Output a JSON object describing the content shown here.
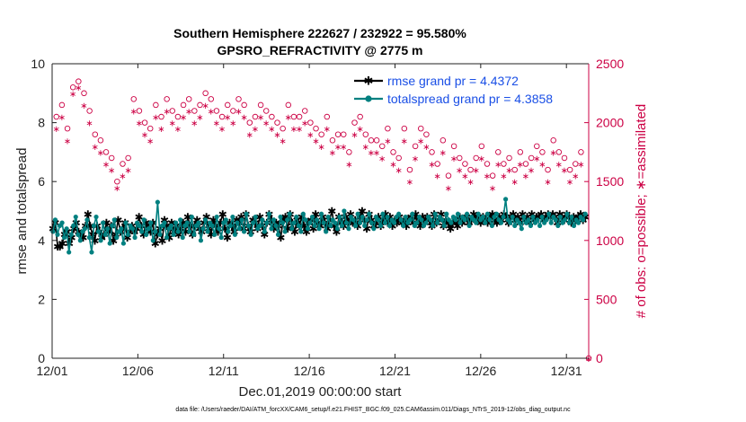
{
  "chart_data": {
    "type": "line",
    "title": "Southern Hemisphere 222627 / 232922 = 95.580%",
    "subtitle": "GPSRO_REFRACTIVITY @ 2775 m",
    "xlabel": "Dec.01,2019 00:00:00 start",
    "ylabel": "rmse and totalspread",
    "y2label": "# of obs: o=possible; ∗=assimilated",
    "footer": "data file: /Users/raeder/DAI/ATM_forcXX/CAM6_setup/f.e21.FHIST_BGC.f09_025.CAM6assim.011/Diags_NTrS_2019-12/obs_diag_output.nc",
    "xlim": [
      0,
      31.3
    ],
    "ylim": [
      0,
      10
    ],
    "y2lim": [
      0,
      2500
    ],
    "xticks": [
      0,
      5,
      10,
      15,
      20,
      25,
      30
    ],
    "xtick_labels": [
      "12/01",
      "12/06",
      "12/11",
      "12/16",
      "12/21",
      "12/26",
      "12/31"
    ],
    "yticks": [
      0,
      2,
      4,
      6,
      8,
      10
    ],
    "ytick_labels": [
      "0",
      "2",
      "4",
      "6",
      "8",
      "10"
    ],
    "y2ticks": [
      0,
      500,
      1000,
      1500,
      2000,
      2500
    ],
    "y2tick_labels": [
      "0",
      "500",
      "1000",
      "1500",
      "2000",
      "2500"
    ],
    "legend_position": "top-right",
    "colors": {
      "rmse": "#000000",
      "spread": "#008080",
      "obs": "#cc0044",
      "axis_right": "#cc0044"
    },
    "series": [
      {
        "name": "rmse grand pr = 4.4372",
        "values": [
          4.4,
          4.6,
          3.8,
          3.8,
          3.9,
          4.2,
          4.3,
          3.9,
          4.1,
          4.4,
          4.6,
          4.3,
          4.2,
          4.1,
          4.5,
          4.9,
          4.5,
          4.2,
          4.0,
          4.5,
          4.3,
          4.1,
          4.2,
          4.6,
          4.3,
          4.5,
          4.0,
          4.2,
          4.7,
          4.3,
          4.4,
          4.6,
          4.1,
          4.3,
          4.5,
          4.3,
          4.4,
          4.8,
          4.5,
          4.2,
          4.6,
          4.4,
          4.3,
          4.6,
          3.9,
          4.2,
          4.4,
          4.0,
          4.7,
          4.5,
          4.1,
          4.6,
          4.3,
          4.5,
          4.2,
          4.4,
          4.6,
          4.3,
          4.8,
          4.5,
          4.2,
          4.5,
          4.7,
          4.4,
          4.3,
          4.6,
          4.8,
          4.4,
          4.2,
          4.7,
          4.5,
          4.3,
          4.6,
          4.9,
          4.4,
          4.1,
          4.6,
          4.5,
          4.3,
          4.7,
          4.6,
          4.8,
          4.4,
          4.9,
          4.5,
          4.3,
          4.7,
          4.6,
          4.4,
          4.8,
          4.5,
          4.2,
          4.6,
          4.9,
          4.7,
          4.4,
          4.6,
          4.5,
          4.1,
          4.7,
          4.8,
          4.4,
          4.9,
          4.6,
          4.3,
          4.7,
          4.5,
          4.8,
          4.5,
          4.3,
          4.6,
          4.7,
          4.4,
          4.9,
          4.6,
          4.5,
          4.8,
          4.6,
          4.4,
          4.7,
          5.0,
          4.5,
          4.3,
          4.8,
          4.6,
          4.5,
          4.8,
          4.6,
          4.9,
          4.6,
          4.7,
          4.5,
          4.8,
          5.0,
          4.7,
          4.4,
          4.9,
          4.7,
          4.5,
          4.6,
          4.8,
          4.5,
          4.7,
          4.9,
          4.6,
          4.8,
          4.5,
          4.7,
          4.6,
          4.8,
          4.6,
          4.7,
          4.5,
          4.7,
          4.8,
          4.6,
          4.9,
          4.7,
          4.5,
          4.8,
          4.6,
          4.8,
          4.7,
          4.5,
          4.9,
          4.6,
          4.7,
          4.9,
          4.5,
          4.7,
          4.6,
          4.4,
          4.6,
          4.7,
          4.5,
          4.8,
          4.6,
          4.7,
          4.8,
          4.6,
          4.7,
          4.9,
          4.7,
          4.8,
          4.6,
          4.8,
          4.7,
          4.6,
          4.8,
          4.9,
          4.7,
          4.6,
          4.8,
          4.7,
          4.9,
          4.8,
          4.6,
          4.8,
          4.9,
          4.7,
          4.8,
          4.6,
          4.9,
          4.7,
          4.8,
          4.6,
          4.9,
          4.7,
          4.8,
          4.8,
          4.9,
          4.7,
          4.8,
          4.9,
          4.8,
          4.9,
          4.8,
          4.6,
          4.9,
          4.8,
          4.7,
          4.9,
          4.8,
          4.6,
          4.8,
          4.7,
          4.8,
          4.9,
          4.7,
          4.8
        ]
      },
      {
        "name": "totalspread grand pr = 4.3858",
        "values": [
          4.3,
          4.7,
          4.2,
          4.5,
          4.6,
          4.1,
          4.4,
          3.6,
          4.2,
          4.5,
          4.8,
          4.2,
          4.0,
          4.3,
          4.4,
          4.7,
          4.1,
          3.6,
          4.5,
          4.8,
          4.3,
          4.0,
          4.6,
          4.2,
          4.4,
          3.9,
          4.5,
          4.7,
          4.1,
          4.3,
          4.4,
          3.9,
          4.6,
          4.2,
          4.5,
          4.4,
          4.1,
          4.6,
          4.5,
          4.3,
          4.7,
          4.2,
          4.4,
          4.6,
          4.0,
          4.3,
          5.3,
          4.2,
          4.5,
          4.6,
          4.1,
          4.4,
          4.5,
          4.2,
          4.6,
          4.3,
          4.7,
          4.1,
          4.5,
          4.6,
          4.3,
          4.8,
          4.2,
          4.5,
          4.6,
          4.0,
          4.4,
          4.7,
          4.3,
          4.6,
          4.5,
          4.2,
          4.8,
          4.4,
          4.1,
          4.6,
          4.7,
          4.3,
          4.5,
          4.8,
          4.2,
          4.6,
          4.4,
          4.7,
          4.3,
          4.9,
          4.5,
          4.2,
          4.6,
          4.8,
          4.4,
          4.5,
          4.7,
          4.3,
          4.6,
          4.9,
          4.4,
          4.7,
          4.5,
          4.2,
          4.8,
          4.6,
          4.3,
          4.7,
          4.9,
          4.4,
          4.6,
          4.8,
          4.5,
          4.3,
          4.9,
          4.7,
          4.4,
          4.6,
          4.8,
          4.5,
          4.7,
          4.4,
          4.9,
          4.6,
          4.3,
          4.8,
          4.5,
          4.7,
          4.6,
          4.4,
          4.8,
          4.5,
          5.0,
          4.6,
          4.4,
          4.8,
          4.7,
          4.5,
          4.9,
          4.6,
          4.8,
          4.5,
          4.7,
          4.9,
          4.6,
          4.4,
          4.8,
          4.7,
          4.5,
          4.9,
          4.6,
          4.8,
          4.5,
          4.7,
          4.6,
          4.8,
          4.9,
          4.7,
          4.5,
          4.8,
          4.6,
          4.7,
          4.9,
          4.5,
          4.6,
          4.8,
          4.7,
          4.5,
          4.6,
          4.8,
          4.7,
          4.5,
          4.9,
          4.6,
          4.8,
          4.7,
          4.5,
          4.9,
          4.7,
          4.6,
          4.8,
          4.7,
          4.9,
          4.6,
          4.8,
          4.7,
          4.9,
          4.5,
          4.8,
          4.7,
          4.6,
          4.9,
          4.7,
          4.8,
          4.6,
          4.9,
          4.7,
          4.5,
          4.8,
          4.9,
          4.7,
          4.6,
          4.8,
          5.4,
          4.7,
          4.6,
          4.8,
          4.5,
          4.7,
          4.6,
          4.4,
          4.8,
          4.6,
          4.7,
          4.5,
          4.8,
          4.6,
          4.7,
          4.5,
          4.8,
          4.6,
          4.7,
          4.9,
          4.6,
          4.8,
          4.7,
          4.5,
          4.8,
          4.6,
          4.7,
          4.9,
          4.6,
          4.8,
          4.5,
          4.7,
          4.6,
          4.8,
          4.7,
          4.9
        ]
      }
    ],
    "obs_possible": [
      2050,
      2150,
      1950,
      2300,
      2350,
      2250,
      2100,
      1900,
      1850,
      1750,
      1700,
      1500,
      1650,
      1700,
      2200,
      2100,
      2000,
      1950,
      2150,
      2050,
      2200,
      2100,
      2050,
      2150,
      2200,
      2100,
      2150,
      2250,
      2200,
      2100,
      2050,
      2150,
      2100,
      2200,
      2150,
      2000,
      2050,
      2150,
      2100,
      2050,
      2000,
      1950,
      2150,
      2050,
      2050,
      2100,
      2000,
      1950,
      1900,
      2050,
      1850,
      1900,
      1900,
      1750,
      2000,
      2050,
      1900,
      1850,
      1850,
      1800,
      1950,
      1750,
      1700,
      1950,
      1600,
      1800,
      1950,
      1900,
      1750,
      1650,
      1850,
      1550,
      1800,
      1700,
      1650,
      1600,
      1700,
      1800,
      1650,
      1550,
      1750,
      1650,
      1700,
      1600,
      1750,
      1650,
      1700,
      1800,
      1750,
      1600,
      1850,
      1750,
      1700,
      1600,
      1650,
      1750
    ],
    "obs_assimilated": [
      1950,
      2050,
      1850,
      2250,
      2300,
      2150,
      2000,
      1800,
      1750,
      1650,
      1600,
      1450,
      1550,
      1600,
      2100,
      2000,
      1900,
      1850,
      2050,
      1950,
      2100,
      2000,
      1950,
      2050,
      2100,
      2000,
      2050,
      2150,
      2100,
      2000,
      1950,
      2050,
      2000,
      2100,
      2050,
      1900,
      1950,
      2050,
      2000,
      1950,
      1900,
      1850,
      2050,
      1950,
      1950,
      2000,
      1900,
      1850,
      1800,
      1950,
      1750,
      1800,
      1800,
      1650,
      1900,
      1950,
      1800,
      1750,
      1750,
      1700,
      1850,
      1650,
      1600,
      1850,
      1500,
      1700,
      1850,
      1800,
      1650,
      1550,
      1750,
      1450,
      1700,
      1600,
      1550,
      1500,
      1600,
      1700,
      1550,
      1450,
      1650,
      1550,
      1600,
      1500,
      1650,
      1550,
      1600,
      1700,
      1650,
      1500,
      1750,
      1650,
      1600,
      1500,
      1550,
      1650
    ]
  }
}
